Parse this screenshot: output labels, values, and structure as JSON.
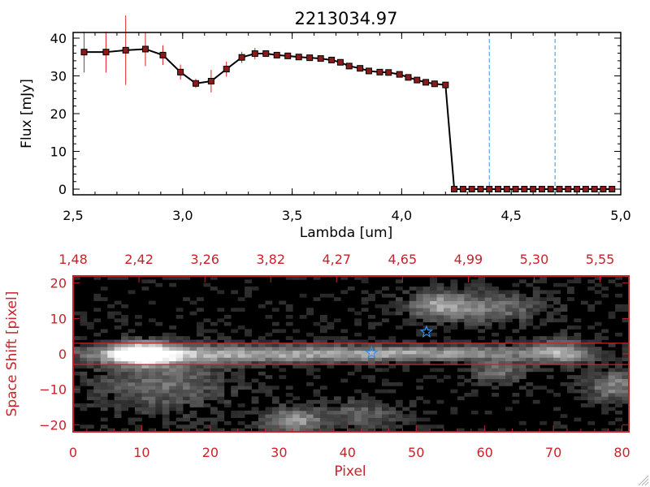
{
  "chart_data": [
    {
      "type": "line",
      "title": "2213034.97",
      "xlabel": "Lambda [um]",
      "ylabel": "Flux [mJy]",
      "xlim": [
        2.5,
        5.0
      ],
      "ylim": [
        -1.5,
        41.5
      ],
      "xticks": [
        "2.5",
        "3.0",
        "3.5",
        "4.0",
        "4.5",
        "5.0"
      ],
      "yticks": [
        "0",
        "10",
        "20",
        "30",
        "40"
      ],
      "reference_lines": [
        4.4,
        4.7
      ],
      "series": [
        {
          "name": "Flux",
          "x": [
            2.55,
            2.65,
            2.74,
            2.83,
            2.91,
            2.99,
            3.06,
            3.13,
            3.2,
            3.27,
            3.33,
            3.38,
            3.43,
            3.48,
            3.53,
            3.58,
            3.63,
            3.68,
            3.72,
            3.76,
            3.81,
            3.85,
            3.9,
            3.94,
            3.99,
            4.03,
            4.07,
            4.11,
            4.15,
            4.2,
            4.24,
            4.28,
            4.32,
            4.36,
            4.4,
            4.44,
            4.48,
            4.52,
            4.56,
            4.6,
            4.64,
            4.68,
            4.72,
            4.76,
            4.8,
            4.84,
            4.88,
            4.92,
            4.96
          ],
          "y": [
            36.3,
            36.3,
            36.8,
            37.1,
            35.5,
            31.0,
            28.0,
            28.6,
            31.8,
            34.9,
            35.9,
            35.9,
            35.5,
            35.3,
            35.0,
            34.8,
            34.6,
            34.2,
            33.6,
            32.6,
            32.0,
            31.3,
            31.0,
            30.9,
            30.4,
            29.6,
            28.9,
            28.3,
            27.9,
            27.6,
            0,
            0,
            0,
            0,
            0,
            0,
            0,
            0,
            0,
            0,
            0,
            0,
            0,
            0,
            0,
            0,
            0,
            0,
            0
          ],
          "yerr": [
            5.4,
            5.4,
            9.2,
            4.5,
            2.6,
            2.0,
            1.2,
            3.0,
            2.0,
            1.5,
            1.5,
            0.3,
            0.3,
            0.3,
            0.3,
            0.3,
            0.3,
            0.3,
            0.3,
            0.3,
            0.3,
            0.3,
            0.3,
            0.3,
            0.3,
            0.3,
            0.3,
            0.3,
            0.3,
            0.3,
            0,
            0,
            0,
            0,
            0,
            0,
            0,
            0,
            0,
            0,
            0,
            0,
            0,
            0,
            0,
            0,
            0,
            0,
            0
          ]
        }
      ]
    },
    {
      "type": "heatmap",
      "xlabel": "Pixel",
      "ylabel": "Space Shift [pixel]",
      "xlim": [
        0,
        81
      ],
      "ylim": [
        -22,
        22
      ],
      "xticks": [
        "0",
        "10",
        "20",
        "30",
        "40",
        "50",
        "60",
        "70",
        "80"
      ],
      "yticks": [
        "-20",
        "-10",
        "0",
        "10",
        "20"
      ],
      "top_tick_values": [
        0,
        9.6,
        19.2,
        28.8,
        38.4,
        48,
        57.6,
        67.2,
        76.8
      ],
      "top_ticks": [
        "1.48",
        "2.42",
        "3.26",
        "3.82",
        "4.27",
        "4.65",
        "4.99",
        "5.30",
        "5.55"
      ],
      "extraction_band": [
        -3,
        3
      ],
      "source_markers": [
        {
          "x": 43.5,
          "y": 0.3
        },
        {
          "x": 51.5,
          "y": 6.2
        }
      ],
      "blobs": [
        {
          "x": 10,
          "y": 0,
          "sx": 3.5,
          "sy": 2.2,
          "amp": 1.0
        },
        {
          "x": 25,
          "y": 0,
          "sx": 18,
          "sy": 1.7,
          "amp": 0.55
        },
        {
          "x": 55,
          "y": 0.3,
          "sx": 14,
          "sy": 1.5,
          "amp": 0.4
        },
        {
          "x": 71,
          "y": 0.5,
          "sx": 3,
          "sy": 2.5,
          "amp": 0.45
        },
        {
          "x": 13,
          "y": -8,
          "sx": 7,
          "sy": 6,
          "amp": 0.35
        },
        {
          "x": 32,
          "y": -19,
          "sx": 3,
          "sy": 2.5,
          "amp": 0.55
        },
        {
          "x": 53,
          "y": 14,
          "sx": 3,
          "sy": 2.5,
          "amp": 0.4
        },
        {
          "x": 60,
          "y": 13,
          "sx": 6,
          "sy": 3,
          "amp": 0.4
        },
        {
          "x": 79,
          "y": -9,
          "sx": 3,
          "sy": 3,
          "amp": 0.45
        },
        {
          "x": 62,
          "y": -5,
          "sx": 3,
          "sy": 2.5,
          "amp": 0.35
        },
        {
          "x": 42,
          "y": -17,
          "sx": 4,
          "sy": 3,
          "amp": 0.3
        }
      ]
    }
  ],
  "colors": {
    "axes": "#000000",
    "red_axes": "#c8232a",
    "marker_fill": "#8b1a1a",
    "errorbar": "#e02020",
    "ref_line": "#3a8fe0",
    "star": "#3a8fe0"
  }
}
